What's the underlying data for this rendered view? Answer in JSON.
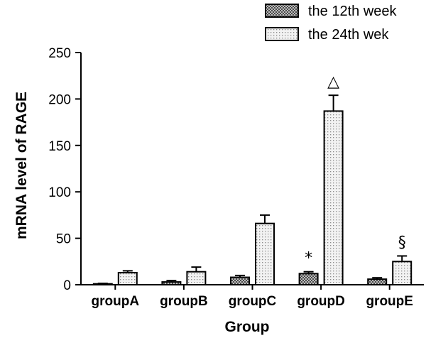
{
  "chart_data": {
    "type": "bar",
    "xlabel": "Group",
    "ylabel": "mRNA level of RAGE",
    "ylim": [
      0,
      250
    ],
    "yticks": [
      0,
      50,
      100,
      150,
      200,
      250
    ],
    "categories": [
      "groupA",
      "groupB",
      "groupC",
      "groupD",
      "groupE"
    ],
    "series": [
      {
        "name": "the 12th week",
        "pattern": "crosshatch",
        "values": [
          1,
          3,
          8,
          12,
          6
        ],
        "errors": [
          0.5,
          1.5,
          2,
          2,
          1.5
        ]
      },
      {
        "name": "the 24th wek",
        "pattern": "dots",
        "values": [
          13,
          14,
          66,
          187,
          25
        ],
        "errors": [
          2,
          5,
          9,
          17,
          6
        ]
      }
    ],
    "annotations": [
      {
        "text": "*",
        "category": "groupD",
        "series": 0
      },
      {
        "text": "△",
        "category": "groupD",
        "series": 1
      },
      {
        "text": "§",
        "category": "groupE",
        "series": 1
      }
    ],
    "legend_position": "top-right",
    "grid": false
  }
}
